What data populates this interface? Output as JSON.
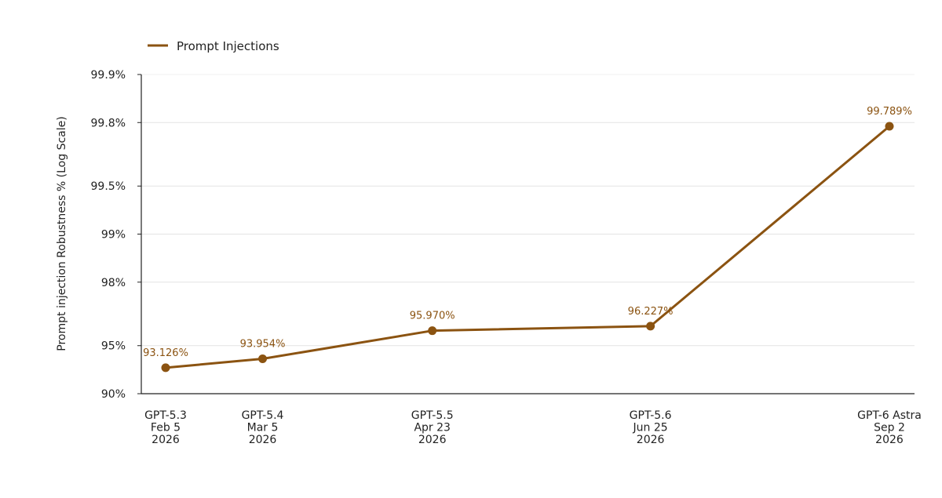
{
  "chart_data": {
    "type": "line",
    "ylabel": "Prompt injection Robustness % (Log Scale)",
    "y_scale": "log of failure rate (100 - value)",
    "yticks": [
      90,
      95,
      98,
      99,
      99.5,
      99.8,
      99.9
    ],
    "ytick_labels": [
      "90%",
      "95%",
      "98%",
      "99%",
      "99.5%",
      "99.8%",
      "99.9%"
    ],
    "ylim": [
      90,
      99.9
    ],
    "grid": "horizontal",
    "legend": {
      "placement": "top-left"
    },
    "categories": [
      {
        "model": "GPT-5.3",
        "date": "Feb 5",
        "year": "2026",
        "x": "2026-02-05"
      },
      {
        "model": "GPT-5.4",
        "date": "Mar 5",
        "year": "2026",
        "x": "2026-03-05"
      },
      {
        "model": "GPT-5.5",
        "date": "Apr 23",
        "year": "2026",
        "x": "2026-04-23"
      },
      {
        "model": "GPT-5.6",
        "date": "Jun 25",
        "year": "2026",
        "x": "2026-06-25"
      },
      {
        "model": "GPT-6 Astra",
        "date": "Sep 2",
        "year": "2026",
        "x": "2026-09-02"
      }
    ],
    "series": [
      {
        "name": "Prompt Injections",
        "color": "#8b5311",
        "values": [
          93.126,
          93.954,
          95.97,
          96.227,
          99.789
        ],
        "data_labels": [
          "93.126%",
          "93.954%",
          "95.970%",
          "96.227%",
          "99.789%"
        ]
      }
    ]
  }
}
